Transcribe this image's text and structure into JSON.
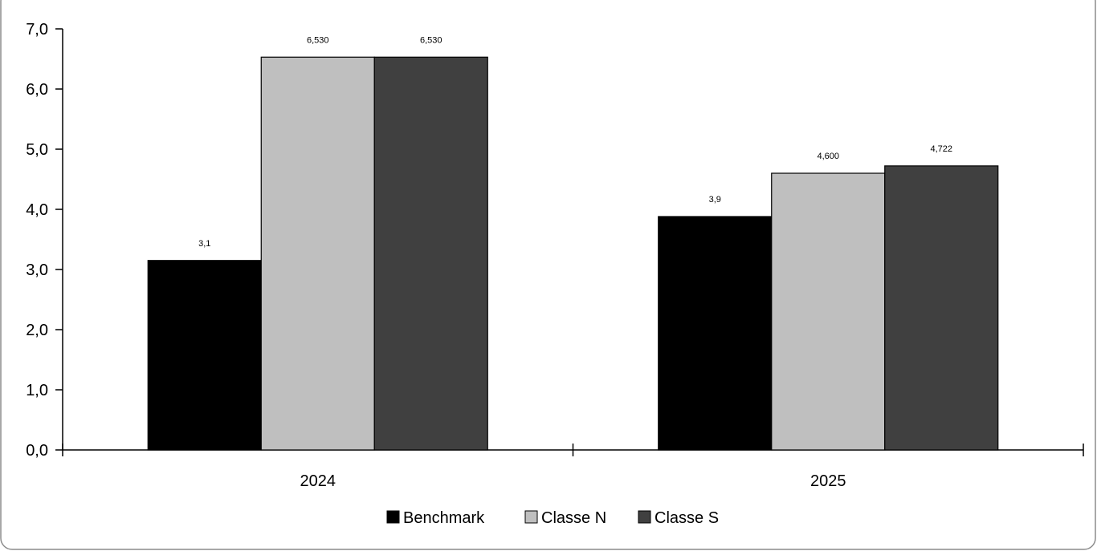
{
  "chart_data": {
    "type": "bar",
    "categories": [
      "2024",
      "2025"
    ],
    "series": [
      {
        "name": "Benchmark",
        "values": [
          3.15,
          3.88
        ],
        "labels": [
          "3,1",
          "3,9"
        ],
        "color": "#000000"
      },
      {
        "name": "Classe N",
        "values": [
          6.53,
          4.6
        ],
        "labels": [
          "6,530",
          "4,600"
        ],
        "color": "#bfbfbf"
      },
      {
        "name": "Classe S",
        "values": [
          6.53,
          4.722
        ],
        "labels": [
          "6,530",
          "4,722"
        ],
        "color": "#404040"
      }
    ],
    "y_ticks": [
      "0,0",
      "1,0",
      "2,0",
      "3,0",
      "4,0",
      "5,0",
      "6,0",
      "7,0"
    ],
    "ylim": [
      0,
      7
    ],
    "title": "",
    "xlabel": "",
    "ylabel": "",
    "grid": false,
    "legend_position": "bottom"
  }
}
